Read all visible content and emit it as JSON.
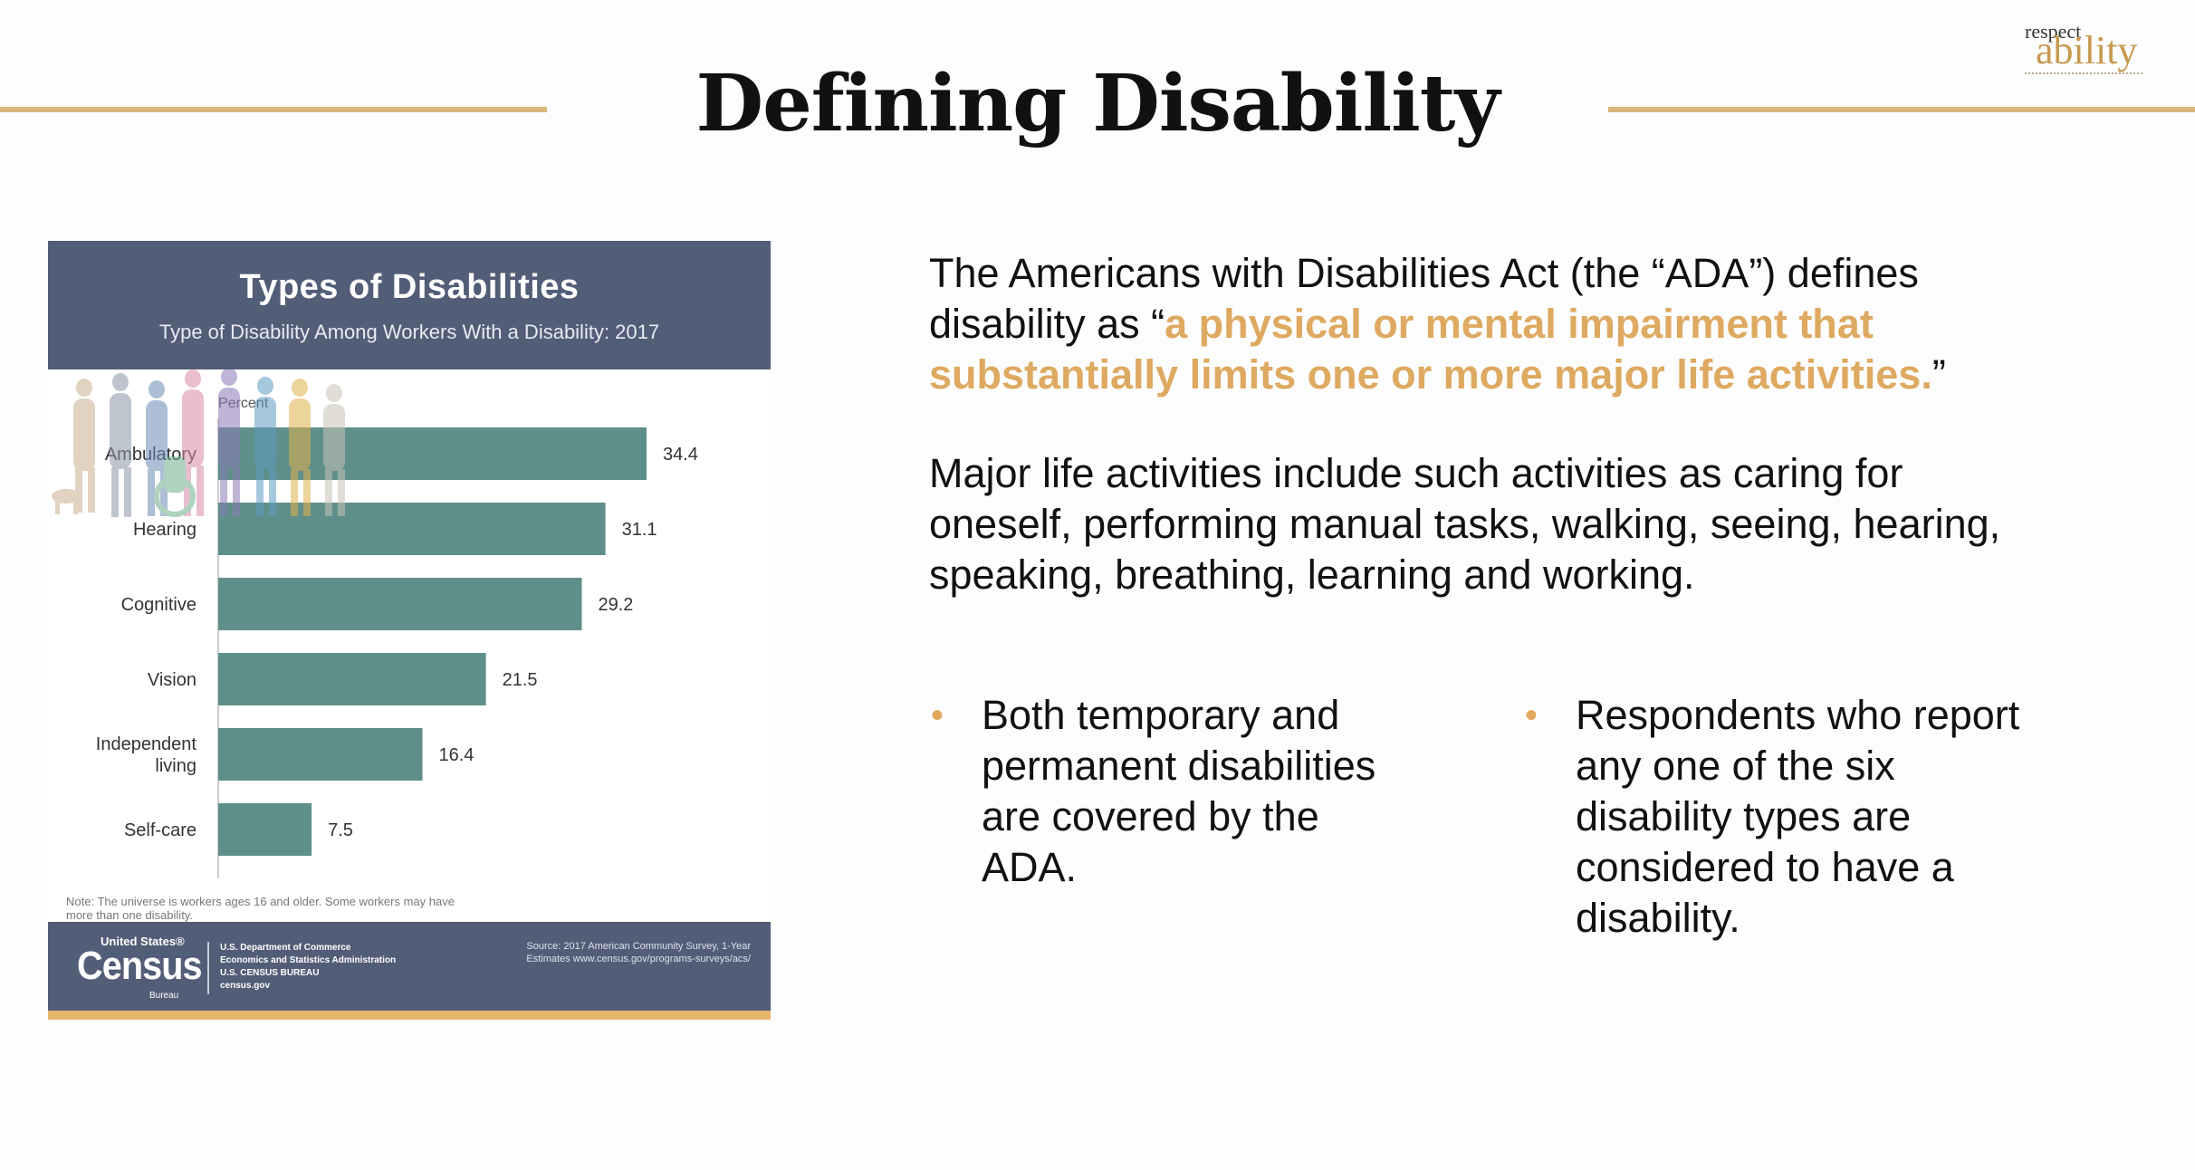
{
  "slide": {
    "title": "Defining Disability",
    "logo": {
      "top": "respect",
      "bottom": "ability"
    }
  },
  "infographic": {
    "title": "Types of Disabilities",
    "subtitle": "Type of Disability Among Workers With a Disability: 2017",
    "note": "Note: The universe is workers ages 16 and older. Some workers may have more than one disability.",
    "footer": {
      "census_small": "United States®",
      "census_big": "Census",
      "census_bureau": "Bureau",
      "org_lines": [
        "U.S. Department of Commerce",
        "Economics and Statistics Administration",
        "U.S. CENSUS BUREAU",
        "census.gov"
      ],
      "source": "Source: 2017 American Community Survey, 1-Year Estimates www.census.gov/programs-surveys/acs/"
    }
  },
  "chart_data": {
    "type": "bar",
    "orientation": "horizontal",
    "title": "Types of Disabilities",
    "subtitle": "Type of Disability Among Workers With a Disability: 2017",
    "ylabel": "Percent",
    "categories": [
      "Ambulatory",
      "Hearing",
      "Cognitive",
      "Vision",
      "Independent living",
      "Self-care"
    ],
    "values": [
      34.4,
      31.1,
      29.2,
      21.5,
      16.4,
      7.5
    ],
    "value_labels": [
      "34.4",
      "31.1",
      "29.2",
      "21.5",
      "16.4",
      "7.5"
    ],
    "xlim": [
      0,
      40
    ],
    "bar_color": "#5f8f8b"
  },
  "text": {
    "p1_before": "The Americans with Disabilities Act (the “ADA”) defines disability as “",
    "p1_highlight": "a physical or mental impairment that substantially limits one or more major life activities.",
    "p1_after": "”",
    "p2": "Major life activities include such activities as caring for oneself, performing manual tasks, walking, seeing, hearing, speaking, breathing, learning and working.",
    "bullets": [
      "Both temporary and permanent disabilities are covered by the ADA.",
      "Respondents who report any one of the six disability types are considered to have a disability."
    ]
  },
  "colors": {
    "accent": "#d9b57a",
    "highlight": "#dea960",
    "header": "#525d77",
    "bar": "#5f8f8b"
  }
}
